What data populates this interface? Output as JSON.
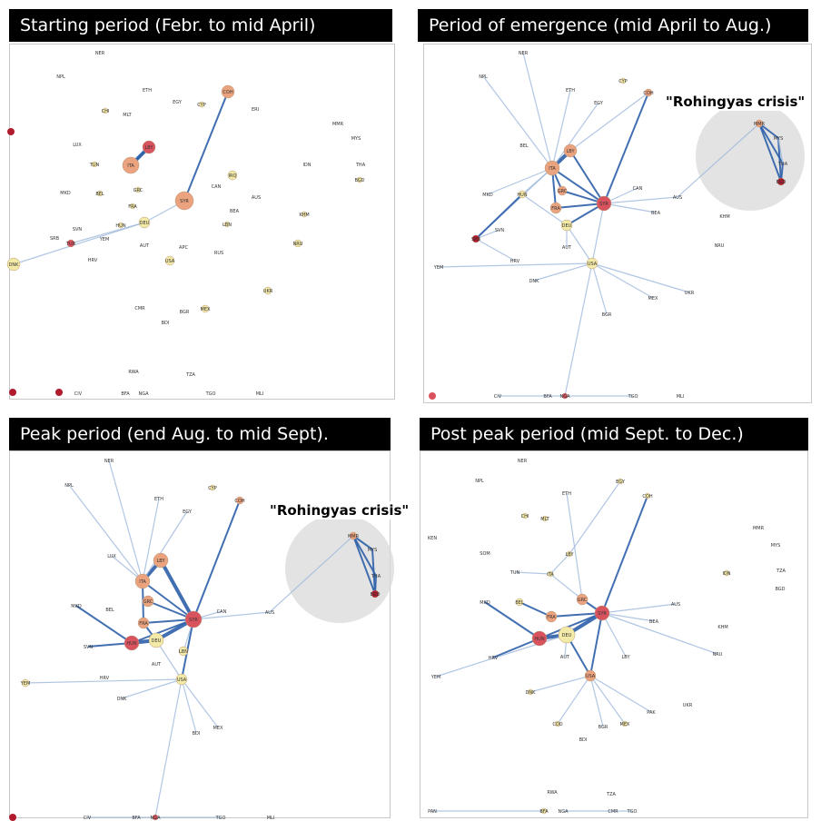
{
  "panels": [
    {
      "title": "Starting period (Febr. to mid April)",
      "nodes": [
        {
          "id": "NER"
        },
        {
          "id": "NPL"
        },
        {
          "id": "ETH"
        },
        {
          "id": "EGY"
        },
        {
          "id": "CYP"
        },
        {
          "id": "COH"
        },
        {
          "id": "MLT"
        },
        {
          "id": "CHI"
        },
        {
          "id": "ERI"
        },
        {
          "id": "LUX"
        },
        {
          "id": "LBY"
        },
        {
          "id": "TUN"
        },
        {
          "id": "ITA"
        },
        {
          "id": "SYR"
        },
        {
          "id": "IRQ"
        },
        {
          "id": "CAN"
        },
        {
          "id": "BEL"
        },
        {
          "id": "GRC"
        },
        {
          "id": "FRA"
        },
        {
          "id": "DEU"
        },
        {
          "id": "HUN"
        },
        {
          "id": "AUT"
        },
        {
          "id": "APC"
        },
        {
          "id": "SRB"
        },
        {
          "id": "SVN"
        },
        {
          "id": "HRV"
        },
        {
          "id": "DNK"
        },
        {
          "id": "MKD"
        },
        {
          "id": "AUS"
        },
        {
          "id": "BEA"
        },
        {
          "id": "LBN"
        },
        {
          "id": "RUS"
        },
        {
          "id": "USA"
        },
        {
          "id": "IDN"
        },
        {
          "id": "MMR"
        },
        {
          "id": "MYS"
        },
        {
          "id": "THA"
        },
        {
          "id": "BGD"
        },
        {
          "id": "KHM"
        },
        {
          "id": "NRU"
        },
        {
          "id": "TUR"
        },
        {
          "id": "YEM"
        },
        {
          "id": "UKR"
        },
        {
          "id": "MEX"
        },
        {
          "id": "CMR"
        },
        {
          "id": "BDI"
        },
        {
          "id": "BGR"
        },
        {
          "id": "RWA"
        },
        {
          "id": "TZA"
        },
        {
          "id": "CIV"
        },
        {
          "id": "BFA"
        },
        {
          "id": "NGA"
        },
        {
          "id": "TGO"
        },
        {
          "id": "MLI"
        }
      ]
    },
    {
      "title": "Period of emergence (mid April to Aug.)",
      "callout": "\"Rohingyas crisis\"",
      "nodes": [
        {
          "id": "NER"
        },
        {
          "id": "NPL"
        },
        {
          "id": "ETH"
        },
        {
          "id": "EGY"
        },
        {
          "id": "CYP"
        },
        {
          "id": "COH"
        },
        {
          "id": "LBY"
        },
        {
          "id": "ITA"
        },
        {
          "id": "SYR"
        },
        {
          "id": "FRA"
        },
        {
          "id": "DEU"
        },
        {
          "id": "GRC"
        },
        {
          "id": "HUN"
        },
        {
          "id": "BEL"
        },
        {
          "id": "SVN"
        },
        {
          "id": "AUT"
        },
        {
          "id": "USA"
        },
        {
          "id": "HRV"
        },
        {
          "id": "MKD"
        },
        {
          "id": "SRB"
        },
        {
          "id": "CAN"
        },
        {
          "id": "BEA"
        },
        {
          "id": "AUS"
        },
        {
          "id": "MMR"
        },
        {
          "id": "MYS"
        },
        {
          "id": "THA"
        },
        {
          "id": "BGD"
        },
        {
          "id": "KHM"
        },
        {
          "id": "NRU"
        },
        {
          "id": "YEM"
        },
        {
          "id": "DNK"
        },
        {
          "id": "MEX"
        },
        {
          "id": "UKR"
        },
        {
          "id": "BGR"
        },
        {
          "id": "CIV"
        },
        {
          "id": "BFA"
        },
        {
          "id": "NGA"
        },
        {
          "id": "TGO"
        },
        {
          "id": "MLI"
        }
      ]
    },
    {
      "title": "Peak period (end Aug. to mid Sept).",
      "callout": "\"Rohingyas crisis\"",
      "nodes": [
        {
          "id": "NER"
        },
        {
          "id": "NPL"
        },
        {
          "id": "ETH"
        },
        {
          "id": "EGY"
        },
        {
          "id": "CYP"
        },
        {
          "id": "COH"
        },
        {
          "id": "LBY"
        },
        {
          "id": "LUX"
        },
        {
          "id": "ITA"
        },
        {
          "id": "SYR"
        },
        {
          "id": "FRA"
        },
        {
          "id": "DEU"
        },
        {
          "id": "HUN"
        },
        {
          "id": "BEL"
        },
        {
          "id": "SVN"
        },
        {
          "id": "AUT"
        },
        {
          "id": "USA"
        },
        {
          "id": "HRV"
        },
        {
          "id": "MKD"
        },
        {
          "id": "GRC"
        },
        {
          "id": "LBN"
        },
        {
          "id": "CAN"
        },
        {
          "id": "AUS"
        },
        {
          "id": "MMR"
        },
        {
          "id": "MYS"
        },
        {
          "id": "THA"
        },
        {
          "id": "BGD"
        },
        {
          "id": "YEM"
        },
        {
          "id": "DNK"
        },
        {
          "id": "BDI"
        },
        {
          "id": "MEX"
        },
        {
          "id": "CIV"
        },
        {
          "id": "BFA"
        },
        {
          "id": "NGA"
        },
        {
          "id": "TGO"
        },
        {
          "id": "MLI"
        }
      ]
    },
    {
      "title": "Post peak period (mid Sept. to Dec.)",
      "nodes": [
        {
          "id": "NER"
        },
        {
          "id": "NPL"
        },
        {
          "id": "ETH"
        },
        {
          "id": "EGY"
        },
        {
          "id": "COH"
        },
        {
          "id": "CHI"
        },
        {
          "id": "MLT"
        },
        {
          "id": "KEN"
        },
        {
          "id": "SOM"
        },
        {
          "id": "TUN"
        },
        {
          "id": "LBY"
        },
        {
          "id": "ITA"
        },
        {
          "id": "SYR"
        },
        {
          "id": "DEU"
        },
        {
          "id": "HUN"
        },
        {
          "id": "AUT"
        },
        {
          "id": "FRA"
        },
        {
          "id": "GRC"
        },
        {
          "id": "BEL"
        },
        {
          "id": "MKD"
        },
        {
          "id": "HRV"
        },
        {
          "id": "USA"
        },
        {
          "id": "LBY2"
        },
        {
          "id": "BEA"
        },
        {
          "id": "AUS"
        },
        {
          "id": "MMR"
        },
        {
          "id": "MYS"
        },
        {
          "id": "TZA"
        },
        {
          "id": "BGD"
        },
        {
          "id": "IDN"
        },
        {
          "id": "KHM"
        },
        {
          "id": "NRU"
        },
        {
          "id": "YEM"
        },
        {
          "id": "DNK"
        },
        {
          "id": "PAK"
        },
        {
          "id": "UKR"
        },
        {
          "id": "COD"
        },
        {
          "id": "BDI"
        },
        {
          "id": "BGR"
        },
        {
          "id": "MEX"
        },
        {
          "id": "RWA"
        },
        {
          "id": "TZA2"
        },
        {
          "id": "CMR"
        },
        {
          "id": "TGO"
        },
        {
          "id": "NGA"
        },
        {
          "id": "PAN"
        },
        {
          "id": "BFA"
        }
      ]
    }
  ],
  "node_labels": {
    "NER": "NER",
    "NPL": "NPL",
    "ETH": "ETH",
    "EGY": "EGY",
    "CYP": "CYP",
    "COH": "COH",
    "MLT": "MLT",
    "CHI": "CHI",
    "ERI": "ERI",
    "LUX": "LUX",
    "LBY": "LBY",
    "TUN": "TUN",
    "ITA": "ITA",
    "SYR": "SYR",
    "IRQ": "IRQ",
    "CAN": "CAN",
    "BEL": "BEL",
    "GRC": "GRC",
    "FRA": "FRA",
    "DEU": "DEU",
    "HUN": "HUN",
    "AUT": "AUT",
    "APC": "APC",
    "SRB": "SRB",
    "SVN": "SVN",
    "HRV": "HRV",
    "DNK": "DNK",
    "MKD": "MKD",
    "AUS": "AUS",
    "BEA": "BEA",
    "LBN": "LBN",
    "RUS": "RUS",
    "USA": "USA",
    "IDN": "IDN",
    "MMR": "MMR",
    "MYS": "MYS",
    "THA": "THA",
    "BGD": "BGD",
    "KHM": "KHM",
    "NRU": "NRU",
    "TUR": "TUR",
    "YEM": "YEM",
    "UKR": "UKR",
    "MEX": "MEX",
    "CMR": "CMR",
    "BDI": "BDI",
    "BGR": "BGR",
    "RWA": "RWA",
    "TZA": "TZA",
    "CIV": "CIV",
    "BFA": "BFA",
    "NGA": "NGA",
    "TGO": "TGO",
    "MLI": "MLI",
    "KEN": "KEN",
    "SOM": "SOM",
    "LBY2": "LBY",
    "PAK": "PAK",
    "COD": "COD",
    "TZA2": "TZA",
    "PAN": "PAN"
  },
  "colors": {
    "node_dark": "#b01c2e",
    "node_red": "#d9535f",
    "node_salmon": "#eba27e",
    "node_peach": "#f3c49c",
    "node_pale": "#f4eaa8",
    "edge_strong": "#2c5fa8",
    "edge_light": "#9db8dc",
    "highlight": "#d9d9d9"
  }
}
